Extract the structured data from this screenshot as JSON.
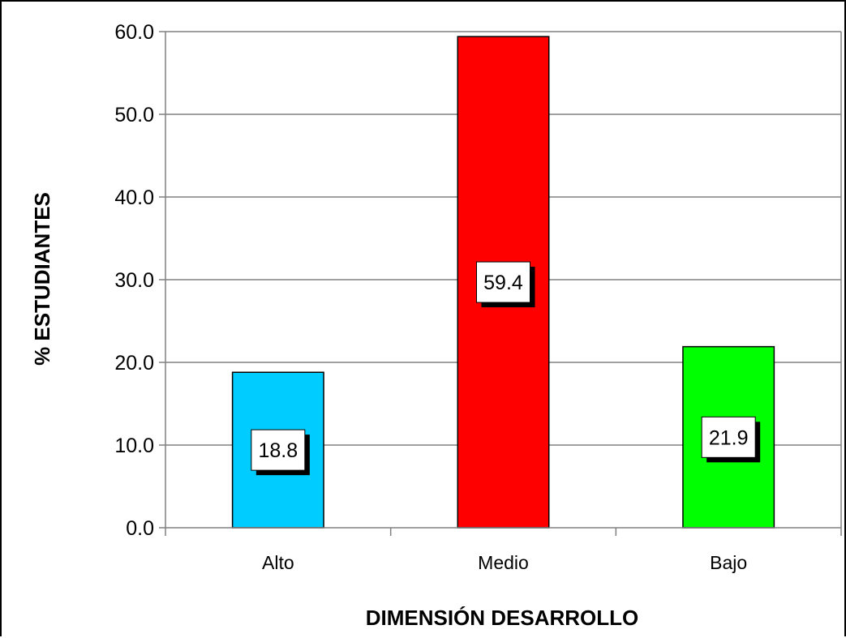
{
  "chart_data": {
    "type": "bar",
    "categories": [
      "Alto",
      "Medio",
      "Bajo"
    ],
    "values": [
      18.8,
      59.4,
      21.9
    ],
    "data_labels": [
      "18.8",
      "59.4",
      "21.9"
    ],
    "colors": [
      "#00ccff",
      "#ff0000",
      "#00ff00"
    ],
    "xlabel": "DIMENSIÓN DESARROLLO",
    "ylabel": "% ESTUDIANTES",
    "ylim": [
      0,
      60
    ],
    "yticks": [
      "0.0",
      "10.0",
      "20.0",
      "30.0",
      "40.0",
      "50.0",
      "60.0"
    ],
    "grid": true,
    "legend": "none"
  }
}
